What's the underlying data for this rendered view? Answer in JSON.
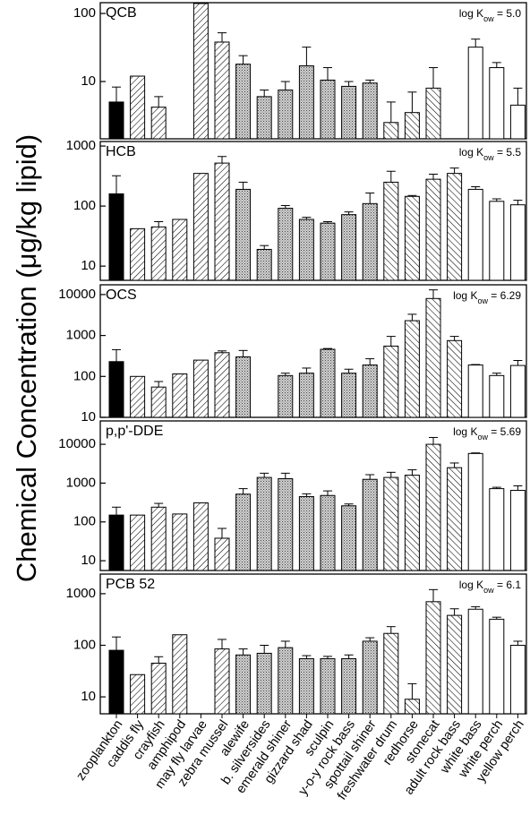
{
  "y_label": "Chemical Concentration (μg/kg lipid)",
  "categories": [
    "zooplankton",
    "caddis fly",
    "crayfish",
    "amphipod",
    "may fly larvae",
    "zebra mussel",
    "alewife",
    "b. silversides",
    "emerald shiner",
    "gizzard shad",
    "sculpin",
    "y-o-y rock bass",
    "spottail shiner",
    "freshwater drum",
    "redhorse",
    "stonecat",
    "adult rock bass",
    "white bass",
    "white perch",
    "yellow perch"
  ],
  "category_styles": [
    "solid",
    "hatch",
    "hatch",
    "hatch",
    "hatch",
    "hatch",
    "stipple",
    "stipple",
    "stipple",
    "stipple",
    "stipple",
    "stipple",
    "stipple",
    "hatch-back",
    "hatch-back",
    "hatch-back",
    "hatch-back",
    "open",
    "open",
    "open"
  ],
  "chart_data": [
    {
      "type": "bar",
      "title": "QCB",
      "annotation": {
        "prefix": "log K",
        "sub": "ow",
        "suffix": " = 5.0"
      },
      "log_scale": true,
      "ylim": [
        1.44,
        144
      ],
      "yticks": [
        10,
        100
      ],
      "values": [
        5,
        12,
        4.2,
        null,
        140,
        38,
        18,
        6,
        7.5,
        17,
        10.5,
        8.5,
        9.5,
        2.5,
        3.5,
        8,
        null,
        32,
        16,
        4.5
      ],
      "errors": [
        3.3,
        null,
        1.8,
        null,
        null,
        14,
        6,
        1.5,
        2.5,
        15,
        5.5,
        1.5,
        1,
        2.5,
        3.5,
        8,
        null,
        10,
        3,
        3.5
      ]
    },
    {
      "type": "bar",
      "title": "HCB",
      "annotation": {
        "prefix": "log K",
        "sub": "ow",
        "suffix": " = 5.5"
      },
      "log_scale": true,
      "ylim": [
        5.8,
        1190
      ],
      "yticks": [
        10,
        100,
        1000
      ],
      "values": [
        160,
        42,
        45,
        60,
        350,
        520,
        190,
        19,
        92,
        60,
        52,
        72,
        110,
        250,
        145,
        280,
        350,
        190,
        120,
        105
      ],
      "errors": [
        160,
        null,
        10,
        null,
        null,
        150,
        60,
        3,
        10,
        5,
        3,
        8,
        55,
        130,
        5,
        60,
        80,
        20,
        12,
        20
      ]
    },
    {
      "type": "bar",
      "title": "OCS",
      "annotation": {
        "prefix": "log K",
        "sub": "ow",
        "suffix": " = 6.29"
      },
      "log_scale": true,
      "ylim": [
        10,
        17300
      ],
      "yticks": [
        10,
        100,
        1000,
        10000
      ],
      "values": [
        230,
        100,
        55,
        115,
        250,
        380,
        300,
        null,
        105,
        120,
        460,
        120,
        190,
        550,
        2300,
        8000,
        750,
        190,
        105,
        185
      ],
      "errors": [
        220,
        null,
        20,
        null,
        null,
        40,
        130,
        null,
        15,
        40,
        20,
        30,
        80,
        400,
        1000,
        5000,
        200,
        5,
        15,
        60
      ]
    },
    {
      "type": "bar",
      "title": "p,p'-DDE",
      "annotation": {
        "prefix": "log K",
        "sub": "ow",
        "suffix": " = 5.69"
      },
      "log_scale": true,
      "ylim": [
        5.6,
        40000
      ],
      "yticks": [
        10,
        100,
        1000,
        10000
      ],
      "values": [
        150,
        150,
        240,
        160,
        310,
        38,
        520,
        1400,
        1300,
        450,
        480,
        260,
        1250,
        1400,
        1600,
        10000,
        2500,
        5800,
        720,
        650
      ],
      "errors": [
        90,
        null,
        60,
        null,
        null,
        30,
        200,
        400,
        500,
        80,
        150,
        30,
        400,
        500,
        600,
        5000,
        800,
        200,
        60,
        200
      ]
    },
    {
      "type": "bar",
      "title": "PCB 52",
      "annotation": {
        "prefix": "log K",
        "sub": "ow",
        "suffix": " = 6.1"
      },
      "log_scale": true,
      "ylim": [
        4.7,
        2400
      ],
      "yticks": [
        10,
        100,
        1000
      ],
      "values": [
        80,
        27,
        45,
        160,
        null,
        85,
        65,
        70,
        90,
        55,
        55,
        55,
        120,
        170,
        9,
        700,
        380,
        500,
        320,
        100
      ],
      "errors": [
        65,
        null,
        15,
        null,
        null,
        45,
        20,
        30,
        30,
        8,
        6,
        10,
        20,
        60,
        9,
        500,
        130,
        60,
        30,
        20
      ]
    }
  ]
}
